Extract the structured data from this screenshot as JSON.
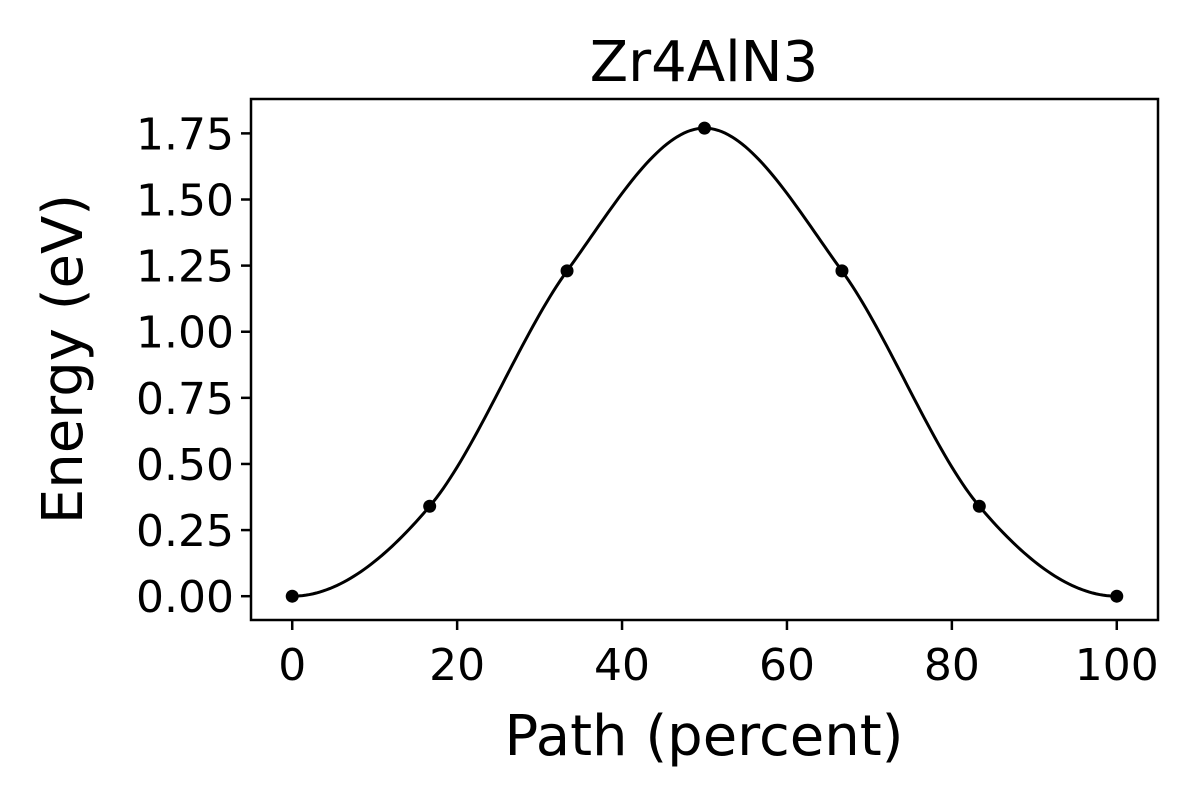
{
  "chart_data": {
    "type": "line",
    "title": "Zr4AlN3",
    "xlabel": "Path (percent)",
    "ylabel": "Energy (eV)",
    "xlim": [
      -5,
      105
    ],
    "ylim": [
      -0.09,
      1.88
    ],
    "xticks": [
      0,
      20,
      40,
      60,
      80,
      100
    ],
    "xtick_labels": [
      "0",
      "20",
      "40",
      "60",
      "80",
      "100"
    ],
    "yticks": [
      0,
      0.25,
      0.5,
      0.75,
      1.0,
      1.25,
      1.5,
      1.75
    ],
    "ytick_labels": [
      "0.00",
      "0.25",
      "0.50",
      "0.75",
      "1.00",
      "1.25",
      "1.50",
      "1.75"
    ],
    "grid": false,
    "legend": false,
    "line_color": "#000000",
    "series": [
      {
        "x": [
          0,
          16.67,
          33.33,
          50,
          66.67,
          83.33,
          100
        ],
        "y": [
          0.0,
          0.34,
          1.23,
          1.77,
          1.23,
          0.34,
          0.0
        ]
      }
    ]
  }
}
